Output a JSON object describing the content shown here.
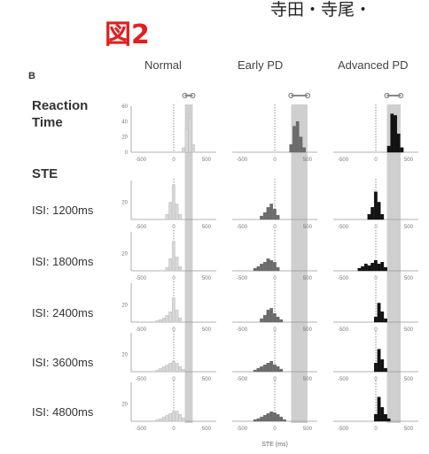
{
  "figure_label": "図2",
  "header_text": "寺田・寺尾・",
  "panel_label": "B",
  "columns": [
    "Normal",
    "Early PD",
    "Advanced PD"
  ],
  "rows": [
    {
      "label": "Reaction Time",
      "bold": true
    },
    {
      "label": "STE",
      "bold": true,
      "heading_only": true
    },
    {
      "label": "ISI: 1200ms"
    },
    {
      "label": "ISI: 1800ms"
    },
    {
      "label": "ISI: 2400ms"
    },
    {
      "label": "ISI: 3600ms"
    },
    {
      "label": "ISI: 4800ms"
    }
  ],
  "colors": {
    "Normal": "#d7d7d7",
    "Early PD": "#6b6b6b",
    "Advanced PD": "#111111",
    "shade": "#cfcfcf",
    "title_red": "#e02020"
  },
  "chart_data": {
    "type": "bar",
    "description_free": true,
    "x_ticks": [
      -500,
      0,
      500
    ],
    "xlim": [
      -650,
      650
    ],
    "xlabel": "STE (ms)",
    "reaction_time_y_ticks": [
      0,
      20,
      40,
      60
    ],
    "ste_y_ticks": [
      20
    ],
    "bin_width_ms": 50,
    "panels": [
      {
        "row": "Reaction Time",
        "group": "Normal",
        "ylim": [
          0,
          60
        ],
        "ymax_tick": 60,
        "bins_x": [
          150,
          200,
          250,
          300
        ],
        "values": [
          6,
          30,
          44,
          10
        ]
      },
      {
        "row": "Reaction Time",
        "group": "Early PD",
        "ylim": [
          0,
          60
        ],
        "bins_x": [
          250,
          300,
          350,
          400,
          450
        ],
        "values": [
          10,
          34,
          40,
          20,
          6
        ]
      },
      {
        "row": "Reaction Time",
        "group": "Advanced PD",
        "ylim": [
          0,
          60
        ],
        "bins_x": [
          200,
          250,
          300,
          350,
          400
        ],
        "values": [
          8,
          50,
          48,
          24,
          6
        ]
      },
      {
        "row": "ISI: 1200ms",
        "group": "Normal",
        "ylim": [
          0,
          45
        ],
        "bins_x": [
          -100,
          -50,
          0,
          50,
          100
        ],
        "values": [
          6,
          20,
          40,
          18,
          6
        ]
      },
      {
        "row": "ISI: 1200ms",
        "group": "Early PD",
        "ylim": [
          0,
          45
        ],
        "bins_x": [
          -200,
          -150,
          -100,
          -50,
          0,
          50
        ],
        "values": [
          4,
          8,
          14,
          18,
          12,
          5
        ]
      },
      {
        "row": "ISI: 1200ms",
        "group": "Advanced PD",
        "ylim": [
          0,
          45
        ],
        "bins_x": [
          -100,
          -50,
          0,
          50,
          100
        ],
        "values": [
          6,
          14,
          32,
          20,
          6
        ]
      },
      {
        "row": "ISI: 1800ms",
        "group": "Normal",
        "ylim": [
          0,
          45
        ],
        "bins_x": [
          -100,
          -50,
          0,
          50,
          100
        ],
        "values": [
          4,
          14,
          34,
          16,
          5
        ]
      },
      {
        "row": "ISI: 1800ms",
        "group": "Early PD",
        "ylim": [
          0,
          45
        ],
        "bins_x": [
          -300,
          -250,
          -200,
          -150,
          -100,
          -50,
          0,
          50
        ],
        "values": [
          3,
          5,
          8,
          10,
          14,
          12,
          10,
          4
        ]
      },
      {
        "row": "ISI: 1800ms",
        "group": "Advanced PD",
        "ylim": [
          0,
          45
        ],
        "bins_x": [
          -250,
          -200,
          -150,
          -100,
          -50,
          0,
          50,
          100,
          150
        ],
        "values": [
          3,
          5,
          8,
          6,
          9,
          12,
          8,
          10,
          4
        ]
      },
      {
        "row": "ISI: 2400ms",
        "group": "Normal",
        "ylim": [
          0,
          45
        ],
        "bins_x": [
          -250,
          -200,
          -150,
          -100,
          -50,
          0,
          50,
          100
        ],
        "values": [
          2,
          3,
          5,
          8,
          12,
          28,
          14,
          5
        ]
      },
      {
        "row": "ISI: 2400ms",
        "group": "Early PD",
        "ylim": [
          0,
          45
        ],
        "bins_x": [
          -200,
          -150,
          -100,
          -50,
          0,
          50,
          100
        ],
        "values": [
          4,
          8,
          14,
          16,
          10,
          6,
          3
        ]
      },
      {
        "row": "ISI: 2400ms",
        "group": "Advanced PD",
        "ylim": [
          0,
          45
        ],
        "bins_x": [
          0,
          50,
          100,
          150
        ],
        "values": [
          6,
          22,
          12,
          4
        ]
      },
      {
        "row": "ISI: 3600ms",
        "group": "Normal",
        "ylim": [
          0,
          45
        ],
        "bins_x": [
          -250,
          -200,
          -150,
          -100,
          -50,
          0,
          50,
          100,
          150
        ],
        "values": [
          2,
          4,
          6,
          8,
          10,
          12,
          10,
          6,
          3
        ]
      },
      {
        "row": "ISI: 3600ms",
        "group": "Early PD",
        "ylim": [
          0,
          45
        ],
        "bins_x": [
          -300,
          -250,
          -200,
          -150,
          -100,
          -50,
          0,
          50,
          100
        ],
        "values": [
          2,
          4,
          6,
          8,
          10,
          12,
          8,
          6,
          3
        ]
      },
      {
        "row": "ISI: 3600ms",
        "group": "Advanced PD",
        "ylim": [
          0,
          45
        ],
        "bins_x": [
          0,
          50,
          100,
          150
        ],
        "values": [
          10,
          26,
          14,
          4
        ]
      },
      {
        "row": "ISI: 4800ms",
        "group": "Normal",
        "ylim": [
          0,
          45
        ],
        "bins_x": [
          -250,
          -200,
          -150,
          -100,
          -50,
          0,
          50,
          100,
          150
        ],
        "values": [
          2,
          3,
          5,
          7,
          9,
          11,
          12,
          8,
          4
        ]
      },
      {
        "row": "ISI: 4800ms",
        "group": "Early PD",
        "ylim": [
          0,
          45
        ],
        "bins_x": [
          -300,
          -250,
          -200,
          -150,
          -100,
          -50,
          0,
          50,
          100,
          150
        ],
        "values": [
          2,
          3,
          5,
          7,
          9,
          11,
          10,
          8,
          5,
          2
        ]
      },
      {
        "row": "ISI: 4800ms",
        "group": "Advanced PD",
        "ylim": [
          0,
          45
        ],
        "bins_x": [
          0,
          50,
          100,
          150,
          200
        ],
        "values": [
          8,
          28,
          16,
          8,
          3
        ]
      }
    ],
    "shaded_region_ms": {
      "Normal": [
        170,
        290
      ],
      "Early PD": [
        250,
        500
      ],
      "Advanced PD": [
        170,
        380
      ]
    },
    "range_markers_ms": {
      "Normal": [
        170,
        290
      ],
      "Early PD": [
        250,
        500
      ],
      "Advanced PD": [
        170,
        380
      ]
    },
    "grid": false
  }
}
